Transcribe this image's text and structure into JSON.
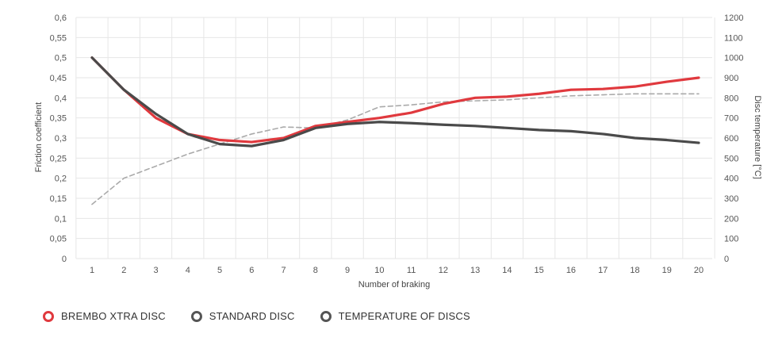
{
  "chart_data": {
    "type": "line",
    "xlabel": "Number of braking",
    "ylabel": "Friction coefficient",
    "ylabel_right": "Disc temperature [°C]",
    "categories": [
      1,
      2,
      3,
      4,
      5,
      6,
      7,
      8,
      9,
      10,
      11,
      12,
      13,
      14,
      15,
      16,
      17,
      18,
      19,
      20
    ],
    "ylim": [
      0,
      0.6
    ],
    "y_ticks": [
      "0",
      "0,05",
      "0,1",
      "0,15",
      "0,2",
      "0,25",
      "0,3",
      "0,35",
      "0,4",
      "0,45",
      "0,5",
      "0,55",
      "0,6"
    ],
    "y2lim": [
      0,
      1200
    ],
    "y2_ticks": [
      "0",
      "100",
      "200",
      "300",
      "400",
      "500",
      "600",
      "700",
      "800",
      "900",
      "1000",
      "1100",
      "1200"
    ],
    "grid": true,
    "series": [
      {
        "name": "BREMBO XTRA DISC",
        "axis": "left",
        "color": "#e0393e",
        "style": "solid",
        "values": [
          0.5,
          0.42,
          0.35,
          0.31,
          0.295,
          0.29,
          0.3,
          0.33,
          0.34,
          0.35,
          0.363,
          0.385,
          0.4,
          0.403,
          0.41,
          0.42,
          0.422,
          0.428,
          0.44,
          0.45
        ]
      },
      {
        "name": "STANDARD DISC",
        "axis": "left",
        "color": "#4a4a4a",
        "style": "solid",
        "values": [
          0.5,
          0.42,
          0.36,
          0.31,
          0.285,
          0.28,
          0.295,
          0.325,
          0.335,
          0.34,
          0.337,
          0.333,
          0.33,
          0.325,
          0.32,
          0.317,
          0.31,
          0.3,
          0.295,
          0.288
        ]
      },
      {
        "name": "TEMPERATURE OF DISCS",
        "axis": "right",
        "color": "#aaaaaa",
        "style": "dashed",
        "values": [
          270,
          400,
          460,
          520,
          570,
          620,
          655,
          650,
          690,
          755,
          765,
          780,
          785,
          790,
          800,
          810,
          815,
          820,
          820,
          820
        ]
      }
    ]
  },
  "legend": {
    "items": [
      {
        "label": "BREMBO XTRA DISC",
        "color": "#e0393e"
      },
      {
        "label": "STANDARD DISC",
        "color": "#555555"
      },
      {
        "label": "TEMPERATURE OF DISCS",
        "color": "#555555"
      }
    ]
  }
}
